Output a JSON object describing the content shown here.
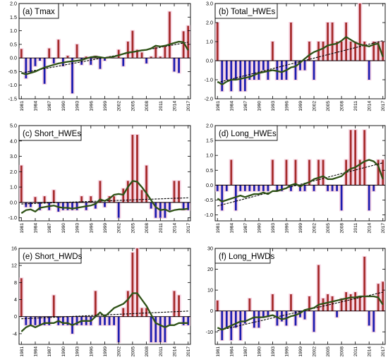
{
  "colors": {
    "positive_bar": "#a52a2a",
    "negative_bar": "#1c1cb0",
    "bar_halo": "#f5cddd",
    "smooth_line": "#2e5216",
    "trend_line": "#000000",
    "zero_line": "#000000"
  },
  "x_tick_labels": [
    "1981",
    "1984",
    "1987",
    "1990",
    "1993",
    "1996",
    "1999",
    "2002",
    "2005",
    "2008",
    "2011",
    "2014",
    "2017"
  ],
  "chart_data": [
    {
      "type": "bar",
      "title": "(a) Tmax",
      "ylim": [
        -1.5,
        2.0
      ],
      "yticks": [
        "-1.5",
        "-1.0",
        "-0.5",
        "0.0",
        "0.5",
        "1.0",
        "1.5",
        "2.0"
      ],
      "x": [
        1981,
        1982,
        1983,
        1984,
        1985,
        1986,
        1987,
        1988,
        1989,
        1990,
        1991,
        1992,
        1993,
        1994,
        1995,
        1996,
        1997,
        1998,
        1999,
        2000,
        2001,
        2002,
        2003,
        2004,
        2005,
        2006,
        2007,
        2008,
        2009,
        2010,
        2011,
        2012,
        2013,
        2014,
        2015,
        2016,
        2017
      ],
      "values": [
        0.33,
        -0.75,
        -0.55,
        -0.3,
        -0.1,
        -0.95,
        0.35,
        -0.2,
        0.67,
        -0.3,
        0.08,
        -1.3,
        0.5,
        -0.25,
        0.05,
        -0.25,
        0.08,
        -0.4,
        -0.1,
        0.05,
        0.0,
        0.3,
        -0.3,
        0.6,
        1.0,
        0.3,
        0.2,
        -0.2,
        0.05,
        0.4,
        0.05,
        0.45,
        1.7,
        -0.5,
        -0.55,
        0.98,
        1.18
      ],
      "smooth": [
        -0.55,
        -0.6,
        -0.55,
        -0.5,
        -0.42,
        -0.35,
        -0.3,
        -0.25,
        -0.2,
        -0.17,
        -0.14,
        -0.12,
        -0.1,
        -0.08,
        -0.02,
        0.03,
        0.05,
        0.03,
        0.0,
        0.02,
        0.05,
        0.1,
        0.15,
        0.2,
        0.22,
        0.25,
        0.28,
        0.3,
        0.35,
        0.45,
        0.42,
        0.45,
        0.5,
        0.55,
        0.6,
        0.58,
        0.28
      ],
      "trend": [
        -0.55,
        0.58
      ]
    },
    {
      "type": "bar",
      "title": "(b) Total_HWEs",
      "ylim": [
        -2.0,
        3.0
      ],
      "yticks": [
        "-2.0",
        "-1.0",
        "0.0",
        "1.0",
        "2.0",
        "3.0"
      ],
      "x": [
        1981,
        1982,
        1983,
        1984,
        1985,
        1986,
        1987,
        1988,
        1989,
        1990,
        1991,
        1992,
        1993,
        1994,
        1995,
        1996,
        1997,
        1998,
        1999,
        2000,
        2001,
        2002,
        2003,
        2004,
        2005,
        2006,
        2007,
        2008,
        2009,
        2010,
        2011,
        2012,
        2013,
        2014,
        2015,
        2016,
        2017
      ],
      "values": [
        2.0,
        -1.6,
        -1.0,
        -1.6,
        -1.0,
        -1.6,
        -1.6,
        -1.0,
        -1.0,
        -1.0,
        -0.5,
        -1.0,
        1.0,
        -1.0,
        -1.0,
        -1.0,
        2.0,
        -1.0,
        -0.5,
        -0.5,
        1.0,
        -1.0,
        1.0,
        1.0,
        2.0,
        2.0,
        1.0,
        1.0,
        2.0,
        1.0,
        1.0,
        3.0,
        1.0,
        -1.0,
        1.0,
        1.0,
        1.0
      ],
      "smooth": [
        -1.1,
        -1.25,
        -1.1,
        -1.0,
        -1.0,
        -0.95,
        -0.9,
        -0.85,
        -0.75,
        -0.65,
        -0.6,
        -0.55,
        -0.5,
        -0.55,
        -0.6,
        -0.5,
        -0.35,
        -0.3,
        -0.1,
        0.1,
        0.3,
        0.45,
        0.55,
        0.65,
        0.8,
        0.85,
        0.9,
        1.05,
        1.25,
        1.1,
        0.95,
        0.85,
        0.8,
        0.75,
        0.85,
        0.9,
        0.2
      ],
      "trend": [
        -1.15,
        1.05
      ]
    },
    {
      "type": "bar",
      "title": "(c) Short_HWEs",
      "ylim": [
        -1.2,
        5.0
      ],
      "yticks": [
        "-1.0",
        "0.0",
        "1.0",
        "2.0",
        "3.0",
        "4.0",
        "5.0"
      ],
      "x": [
        1981,
        1982,
        1983,
        1984,
        1985,
        1986,
        1987,
        1988,
        1989,
        1990,
        1991,
        1992,
        1993,
        1994,
        1995,
        1996,
        1997,
        1998,
        1999,
        2000,
        2001,
        2002,
        2003,
        2004,
        2005,
        2006,
        2007,
        2008,
        2009,
        2010,
        2011,
        2012,
        2013,
        2014,
        2015,
        2016,
        2017
      ],
      "values": [
        2.4,
        -0.3,
        -0.3,
        0.35,
        -0.5,
        0.4,
        -0.5,
        0.8,
        -0.6,
        -0.5,
        -0.5,
        -0.5,
        -0.5,
        0.4,
        -0.5,
        0.4,
        -0.4,
        1.4,
        -0.3,
        0.4,
        0.4,
        -1.0,
        0.9,
        1.4,
        4.4,
        4.4,
        0.8,
        2.4,
        -0.4,
        -1.0,
        -1.0,
        -1.0,
        -0.5,
        1.4,
        1.4,
        -0.5,
        -0.5
      ],
      "smooth": [
        -0.7,
        -0.5,
        -0.45,
        -0.6,
        -0.35,
        -0.3,
        -0.25,
        -0.2,
        -0.3,
        -0.35,
        -0.35,
        -0.4,
        -0.35,
        -0.3,
        -0.25,
        -0.2,
        -0.1,
        0.2,
        0.1,
        0.25,
        0.5,
        0.55,
        0.5,
        1.0,
        1.4,
        1.35,
        1.0,
        0.6,
        0.15,
        -0.3,
        -0.5,
        -0.45,
        -0.6,
        -0.5,
        -0.45,
        -0.45,
        -0.4
      ],
      "trend": [
        -0.1,
        0.3
      ]
    },
    {
      "type": "bar",
      "title": "(d) Long_HWEs",
      "ylim": [
        -1.2,
        2.0
      ],
      "yticks": [
        "-1.0",
        "-0.5",
        "0.0",
        "0.5",
        "1.0",
        "1.5",
        "2.0"
      ],
      "x": [
        1981,
        1982,
        1983,
        1984,
        1985,
        1986,
        1987,
        1988,
        1989,
        1990,
        1991,
        1992,
        1993,
        1994,
        1995,
        1996,
        1997,
        1998,
        1999,
        2000,
        2001,
        2002,
        2003,
        2004,
        2005,
        2006,
        2007,
        2008,
        2009,
        2010,
        2011,
        2012,
        2013,
        2014,
        2015,
        2016,
        2017
      ],
      "values": [
        -0.2,
        -0.85,
        -0.2,
        0.85,
        -0.85,
        -0.2,
        -0.2,
        -0.2,
        -0.2,
        -0.2,
        -0.2,
        -0.2,
        0.85,
        -0.2,
        -0.2,
        0.85,
        -0.2,
        0.85,
        -0.2,
        -0.2,
        0.85,
        -0.2,
        0.85,
        0.85,
        -0.2,
        -0.2,
        -0.2,
        -0.85,
        0.85,
        1.85,
        1.85,
        0.85,
        1.85,
        -0.85,
        -0.2,
        0.85,
        0.85
      ],
      "smooth": [
        -0.45,
        -0.55,
        -0.5,
        -0.45,
        -0.4,
        -0.35,
        -0.4,
        -0.35,
        -0.3,
        -0.3,
        -0.25,
        -0.3,
        -0.2,
        -0.2,
        -0.15,
        -0.1,
        0.0,
        0.05,
        -0.05,
        0.05,
        0.1,
        0.2,
        0.25,
        0.3,
        0.2,
        0.2,
        0.25,
        0.3,
        0.45,
        0.55,
        0.6,
        0.7,
        0.8,
        0.85,
        0.8,
        0.65,
        0.2
      ],
      "trend": [
        -0.7,
        0.75
      ]
    },
    {
      "type": "bar",
      "title": "(e) Short_HWDs",
      "ylim": [
        -6.5,
        16.0
      ],
      "yticks": [
        "-4",
        "0",
        "4",
        "8",
        "12",
        "16"
      ],
      "x": [
        1981,
        1982,
        1983,
        1984,
        1985,
        1986,
        1987,
        1988,
        1989,
        1990,
        1991,
        1992,
        1993,
        1994,
        1995,
        1996,
        1997,
        1998,
        1999,
        2000,
        2001,
        2002,
        2003,
        2004,
        2005,
        2006,
        2007,
        2008,
        2009,
        2010,
        2011,
        2012,
        2013,
        2014,
        2015,
        2016,
        2017
      ],
      "values": [
        9.0,
        -2.0,
        -2.0,
        -2.0,
        -2.0,
        -2.0,
        -2.0,
        5.0,
        -2.0,
        -2.0,
        -2.0,
        -4.0,
        -2.0,
        -2.0,
        -2.0,
        -2.0,
        6.0,
        -2.0,
        -2.0,
        -2.0,
        -2.0,
        -6.0,
        2.0,
        6.0,
        15.0,
        16.0,
        2.0,
        2.0,
        -6.0,
        -6.0,
        -6.0,
        -6.0,
        -2.0,
        6.0,
        5.0,
        -2.0,
        -2.0
      ],
      "smooth": [
        -3.5,
        -2.5,
        -2.0,
        -2.5,
        -2.0,
        -1.5,
        -1.5,
        -1.5,
        -1.0,
        -1.5,
        -1.5,
        -2.0,
        -1.5,
        -1.0,
        -1.0,
        -1.0,
        0.0,
        1.0,
        0.0,
        1.0,
        2.0,
        2.5,
        3.0,
        4.0,
        5.5,
        5.5,
        4.0,
        2.5,
        0.5,
        -1.5,
        -2.0,
        -2.5,
        -2.0,
        -2.0,
        -1.5,
        -1.5,
        -1.5
      ],
      "trend": [
        -0.5,
        1.3
      ]
    },
    {
      "type": "bar",
      "title": "(f) Long_HWDs",
      "ylim": [
        -16.0,
        30.0
      ],
      "yticks": [
        "-10",
        "0",
        "10",
        "20",
        "30"
      ],
      "x": [
        1981,
        1982,
        1983,
        1984,
        1985,
        1986,
        1987,
        1988,
        1989,
        1990,
        1991,
        1992,
        1993,
        1994,
        1995,
        1996,
        1997,
        1998,
        1999,
        2000,
        2001,
        2002,
        2003,
        2004,
        2005,
        2006,
        2007,
        2008,
        2009,
        2010,
        2011,
        2012,
        2013,
        2014,
        2015,
        2016,
        2017
      ],
      "values": [
        5.0,
        -14.0,
        -8.0,
        -14.0,
        -8.0,
        -14.0,
        -6.0,
        6.0,
        -8.0,
        -8.0,
        -3.0,
        -3.0,
        8.0,
        -7.0,
        -5.0,
        -7.0,
        8.0,
        -7.0,
        -3.0,
        -4.0,
        7.0,
        -10.0,
        22.0,
        6.0,
        8.0,
        7.0,
        -3.0,
        6.0,
        9.0,
        8.0,
        9.0,
        7.0,
        26.0,
        -7.0,
        -10.0,
        13.0,
        14.0
      ],
      "smooth": [
        -8.0,
        -9.0,
        -8.0,
        -7.0,
        -6.0,
        -5.0,
        -5.0,
        -4.0,
        -3.0,
        -3.0,
        -3.0,
        -2.5,
        -2.0,
        -3.0,
        -4.0,
        -3.5,
        -2.5,
        -2.0,
        -1.0,
        0.5,
        1.0,
        1.5,
        3.0,
        3.5,
        4.0,
        4.5,
        5.0,
        5.5,
        6.0,
        6.5,
        6.5,
        7.0,
        7.0,
        7.0,
        7.0,
        6.5,
        3.0
      ],
      "trend": [
        -9.5,
        9.0
      ]
    }
  ]
}
